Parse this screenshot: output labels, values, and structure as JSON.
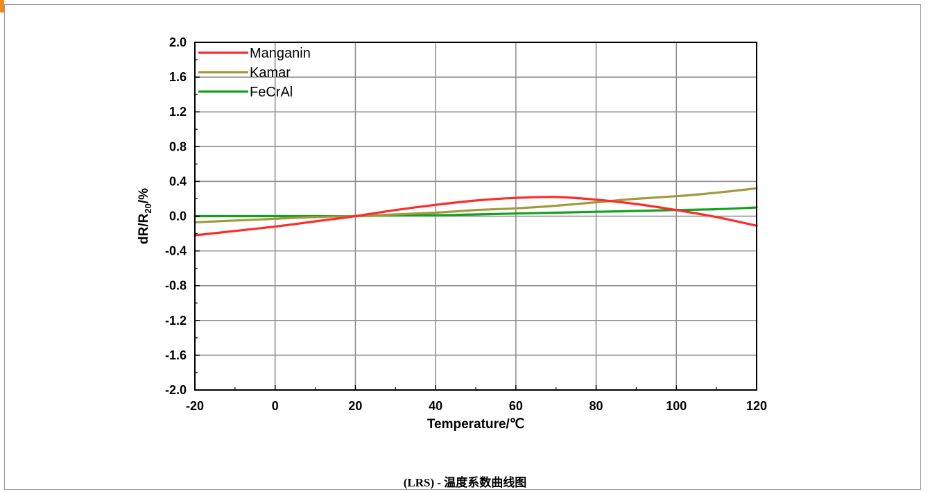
{
  "chart_data": {
    "type": "line",
    "xlabel": "Temperature/℃",
    "ylabel_main": "dR/R",
    "ylabel_sub": "20",
    "ylabel_unit": "/%",
    "xlim": [
      -20,
      120
    ],
    "ylim": [
      -2.0,
      2.0
    ],
    "x_ticks": [
      -20,
      0,
      20,
      40,
      60,
      80,
      100,
      120
    ],
    "x_tick_labels": [
      "-20",
      "0",
      "20",
      "40",
      "60",
      "80",
      "100",
      "120"
    ],
    "y_ticks": [
      2.0,
      1.6,
      1.2,
      0.8,
      0.4,
      0.0,
      -0.4,
      -0.8,
      -1.2,
      -1.6,
      -2.0
    ],
    "y_tick_labels": [
      "2.0",
      "1.6",
      "1.2",
      "0.8",
      "0.4",
      "0.0",
      "-0.4",
      "-0.8",
      "-1.2",
      "-1.6",
      "-2.0"
    ],
    "grid": true,
    "legend_position": "top-left",
    "series": [
      {
        "name": "Manganin",
        "color": "#ff2a2a",
        "x": [
          -20,
          -10,
          0,
          10,
          20,
          30,
          40,
          50,
          60,
          70,
          80,
          90,
          100,
          110,
          120
        ],
        "y": [
          -0.22,
          -0.17,
          -0.12,
          -0.06,
          0.0,
          0.07,
          0.13,
          0.18,
          0.21,
          0.22,
          0.19,
          0.14,
          0.07,
          -0.01,
          -0.11
        ]
      },
      {
        "name": "Kamar",
        "color": "#a09a3c",
        "x": [
          -20,
          -10,
          0,
          10,
          20,
          30,
          40,
          50,
          60,
          70,
          80,
          90,
          100,
          110,
          120
        ],
        "y": [
          -0.07,
          -0.05,
          -0.03,
          -0.01,
          0.0,
          0.02,
          0.04,
          0.07,
          0.09,
          0.12,
          0.16,
          0.2,
          0.23,
          0.27,
          0.32
        ]
      },
      {
        "name": "FeCrAl",
        "color": "#15a020",
        "x": [
          -20,
          -10,
          0,
          10,
          20,
          30,
          40,
          50,
          60,
          70,
          80,
          90,
          100,
          110,
          120
        ],
        "y": [
          0.0,
          0.0,
          0.0,
          0.0,
          0.0,
          0.01,
          0.01,
          0.02,
          0.03,
          0.04,
          0.05,
          0.06,
          0.07,
          0.08,
          0.1
        ]
      }
    ]
  },
  "caption": {
    "text": "(LRS) - 温度系数曲线图"
  },
  "colors": {
    "grid": "#8a8a8a",
    "frame_border": "#9a9a9a",
    "corner_mark": "#f08a1c"
  }
}
